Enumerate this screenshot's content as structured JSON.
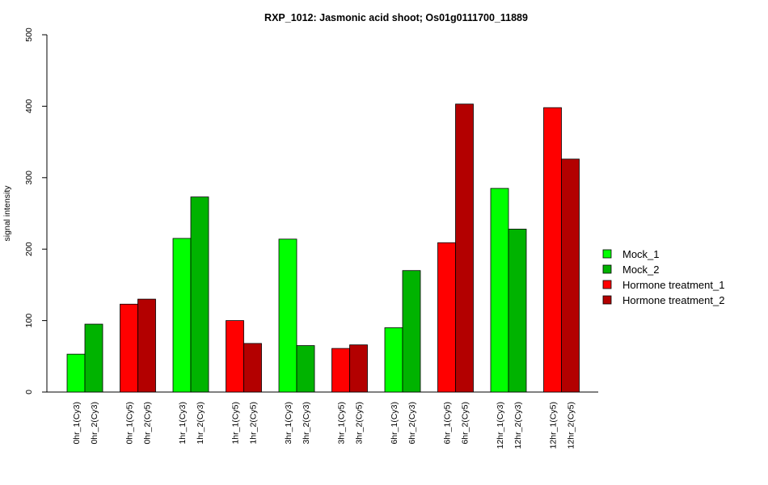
{
  "chart_data": {
    "type": "bar",
    "title": "RXP_1012: Jasmonic acid shoot; Os01g0111700_11889",
    "xlabel": "",
    "ylabel": "signal intensity",
    "ylim": [
      0,
      500
    ],
    "yticks": [
      0,
      100,
      200,
      300,
      400,
      500
    ],
    "grid": false,
    "legend_position": "right",
    "legend": [
      {
        "name": "Mock_1",
        "color": "#00ff00"
      },
      {
        "name": "Mock_2",
        "color": "#00b300"
      },
      {
        "name": "Hormone treatment_1",
        "color": "#ff0000"
      },
      {
        "name": "Hormone treatment_2",
        "color": "#b30000"
      }
    ],
    "bars": [
      {
        "label": "0hr_1(Cy3)",
        "value": 53,
        "series": "Mock_1"
      },
      {
        "label": "0hr_2(Cy3)",
        "value": 95,
        "series": "Mock_2"
      },
      {
        "label": "0hr_1(Cy5)",
        "value": 123,
        "series": "Hormone treatment_1"
      },
      {
        "label": "0hr_2(Cy5)",
        "value": 130,
        "series": "Hormone treatment_2"
      },
      {
        "label": "1hr_1(Cy3)",
        "value": 215,
        "series": "Mock_1"
      },
      {
        "label": "1hr_2(Cy3)",
        "value": 273,
        "series": "Mock_2"
      },
      {
        "label": "1hr_1(Cy5)",
        "value": 100,
        "series": "Hormone treatment_1"
      },
      {
        "label": "1hr_2(Cy5)",
        "value": 68,
        "series": "Hormone treatment_2"
      },
      {
        "label": "3hr_1(Cy3)",
        "value": 214,
        "series": "Mock_1"
      },
      {
        "label": "3hr_2(Cy3)",
        "value": 65,
        "series": "Mock_2"
      },
      {
        "label": "3hr_1(Cy5)",
        "value": 61,
        "series": "Hormone treatment_1"
      },
      {
        "label": "3hr_2(Cy5)",
        "value": 66,
        "series": "Hormone treatment_2"
      },
      {
        "label": "6hr_1(Cy3)",
        "value": 90,
        "series": "Mock_1"
      },
      {
        "label": "6hr_2(Cy3)",
        "value": 170,
        "series": "Mock_2"
      },
      {
        "label": "6hr_1(Cy5)",
        "value": 209,
        "series": "Hormone treatment_1"
      },
      {
        "label": "6hr_2(Cy5)",
        "value": 403,
        "series": "Hormone treatment_2"
      },
      {
        "label": "12hr_1(Cy3)",
        "value": 285,
        "series": "Mock_1"
      },
      {
        "label": "12hr_2(Cy3)",
        "value": 228,
        "series": "Mock_2"
      },
      {
        "label": "12hr_1(Cy5)",
        "value": 398,
        "series": "Hormone treatment_1"
      },
      {
        "label": "12hr_2(Cy5)",
        "value": 326,
        "series": "Hormone treatment_2"
      }
    ]
  }
}
